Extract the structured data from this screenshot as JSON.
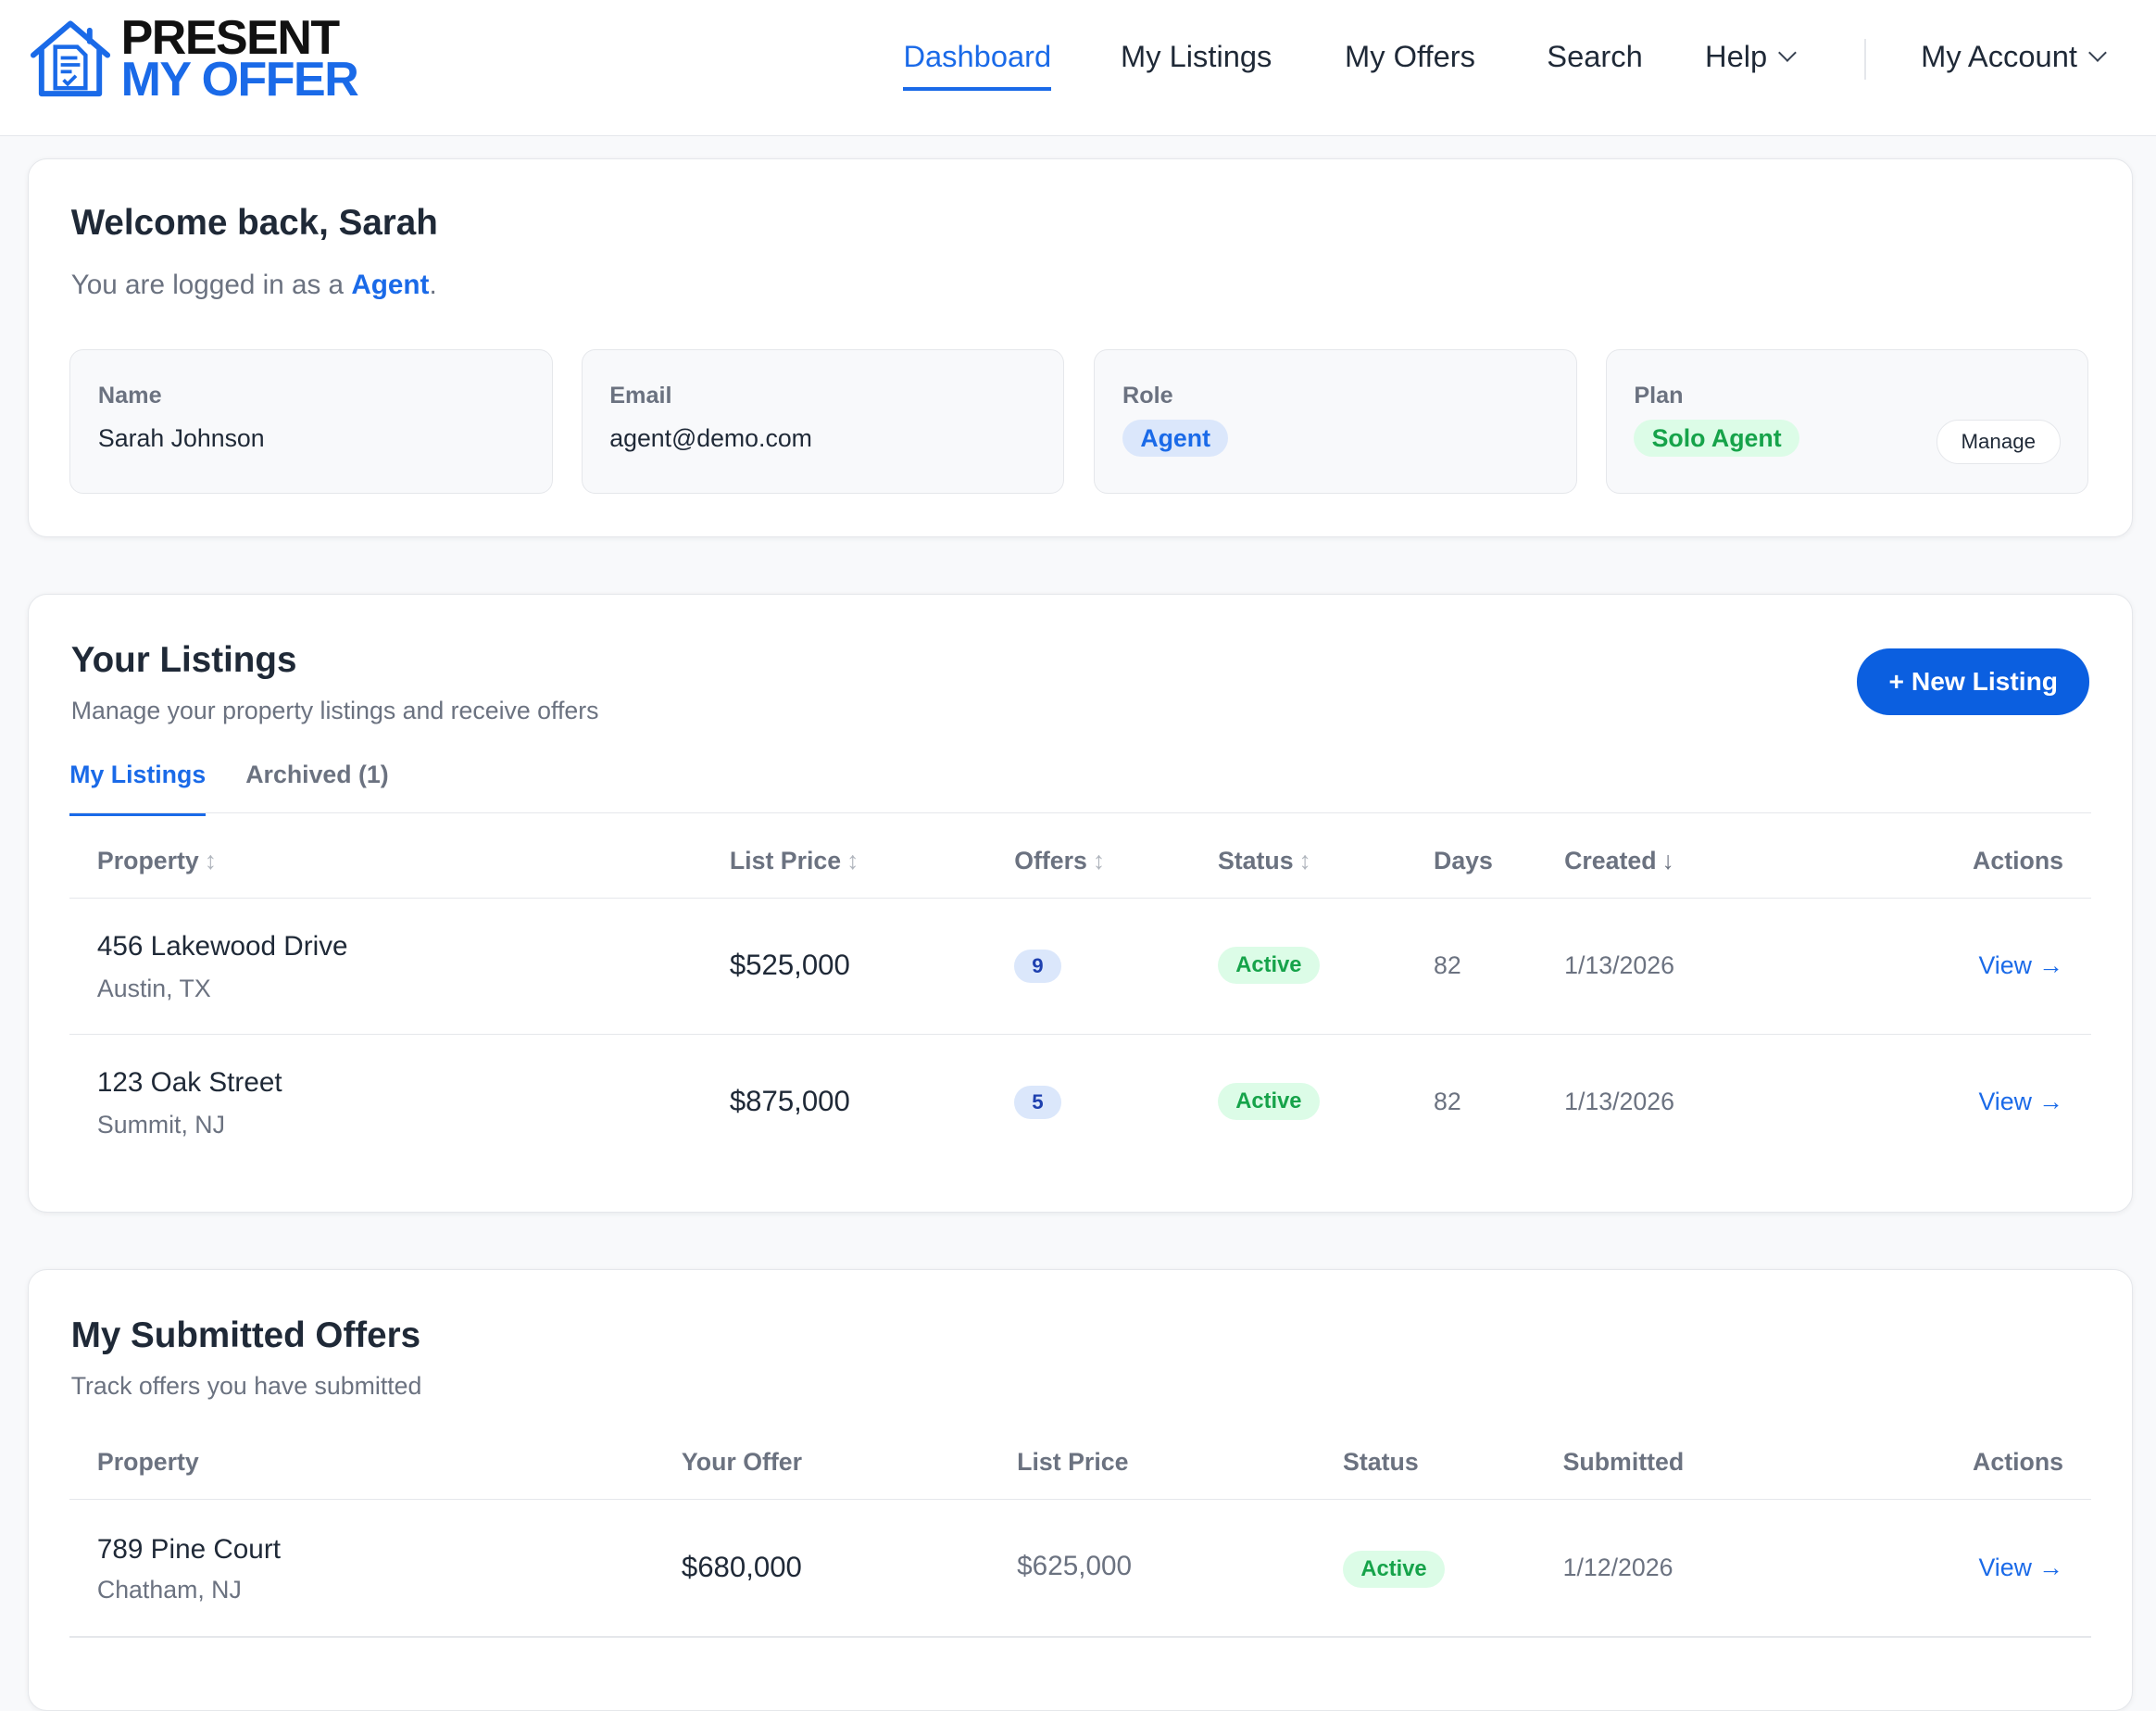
{
  "brand": {
    "line1": "PRESENT",
    "line2": "MY OFFER",
    "color": "#1a6ae8"
  },
  "nav": {
    "items": [
      {
        "label": "Dashboard",
        "active": true
      },
      {
        "label": "My Listings"
      },
      {
        "label": "My Offers"
      },
      {
        "label": "Search"
      },
      {
        "label": "Help"
      }
    ],
    "account": "My Account"
  },
  "welcome": {
    "title": "Welcome back, Sarah",
    "subtitle_prefix": "You are logged in as a ",
    "role_link": "Agent",
    "subtitle_suffix": ".",
    "info": {
      "name_label": "Name",
      "name": "Sarah Johnson",
      "email_label": "Email",
      "email": "agent@demo.com",
      "role_label": "Role",
      "role": "Agent",
      "plan_label": "Plan",
      "plan": "Solo Agent",
      "manage": "Manage"
    }
  },
  "listings": {
    "title": "Your Listings",
    "subtitle": "Manage your property listings and receive offers",
    "new_button": "+ New Listing",
    "tabs": [
      {
        "label": "My Listings",
        "active": true
      },
      {
        "label": "Archived (1)"
      }
    ],
    "columns": [
      "Property",
      "List Price",
      "Offers",
      "Status",
      "Days",
      "Created",
      "Actions"
    ],
    "rows": [
      {
        "name": "456 Lakewood Drive",
        "city": "Austin, TX",
        "price": "$525,000",
        "offers": "9",
        "status": "Active",
        "days": "82",
        "created": "1/13/2026",
        "action": "View →"
      },
      {
        "name": "123 Oak Street",
        "city": "Summit, NJ",
        "price": "$875,000",
        "offers": "5",
        "status": "Active",
        "days": "82",
        "created": "1/13/2026",
        "action": "View →"
      }
    ]
  },
  "offers": {
    "title": "My Submitted Offers",
    "subtitle": "Track offers you have submitted",
    "columns": [
      "Property",
      "Your Offer",
      "List Price",
      "Status",
      "Submitted",
      "Actions"
    ],
    "rows": [
      {
        "name": "789 Pine Court",
        "city": "Chatham, NJ",
        "offer": "$680,000",
        "list_price": "$625,000",
        "status": "Active",
        "submitted": "1/12/2026",
        "action": "View →"
      }
    ]
  }
}
